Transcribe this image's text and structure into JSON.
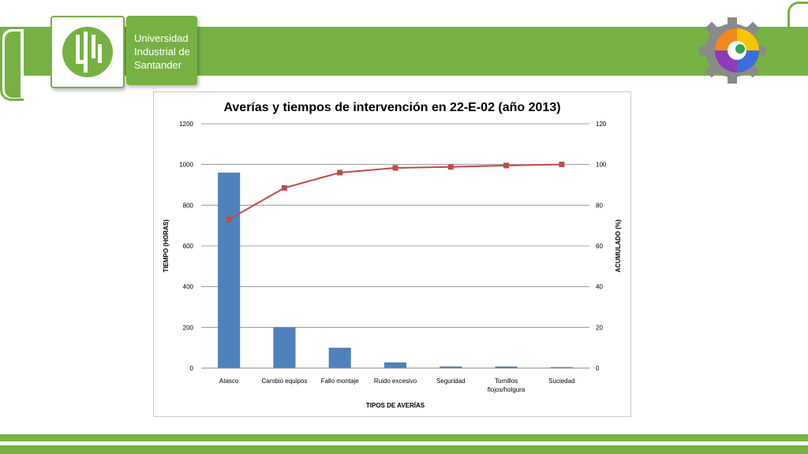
{
  "header": {
    "logo_text": "UIS",
    "university_lines": [
      "Universidad",
      "Industrial de",
      "Santander"
    ]
  },
  "colors": {
    "brand_green": "#77b144",
    "bar_blue": "#4f81bd",
    "line_red": "#be4b48"
  },
  "chart_data": {
    "type": "bar",
    "title": "Averías y tiempos de intervención en 22-E-02 (año 2013)",
    "xlabel": "TIPOS DE AVERÍAS",
    "ylabel": "TIEMPO (HORAS)",
    "y2label": "ACUMULADO (%)",
    "categories": [
      "Atasco",
      "Cambio equipos",
      "Fallo montaje",
      "Ruido excesivo",
      "Seguridad",
      "Tornillos flojos/holgura",
      "Suciedad"
    ],
    "series": [
      {
        "type": "bar",
        "axis": "left",
        "values": [
          960,
          200,
          100,
          28,
          8,
          8,
          5
        ]
      },
      {
        "type": "line",
        "axis": "right",
        "values": [
          73,
          88.5,
          96,
          98.3,
          98.8,
          99.5,
          100
        ]
      }
    ],
    "ylim": [
      0,
      1200
    ],
    "yticks": [
      0,
      200,
      400,
      600,
      800,
      1000,
      1200
    ],
    "y2lim": [
      0,
      120
    ],
    "y2ticks": [
      0,
      20,
      40,
      60,
      80,
      100,
      120
    ],
    "grid": true
  }
}
